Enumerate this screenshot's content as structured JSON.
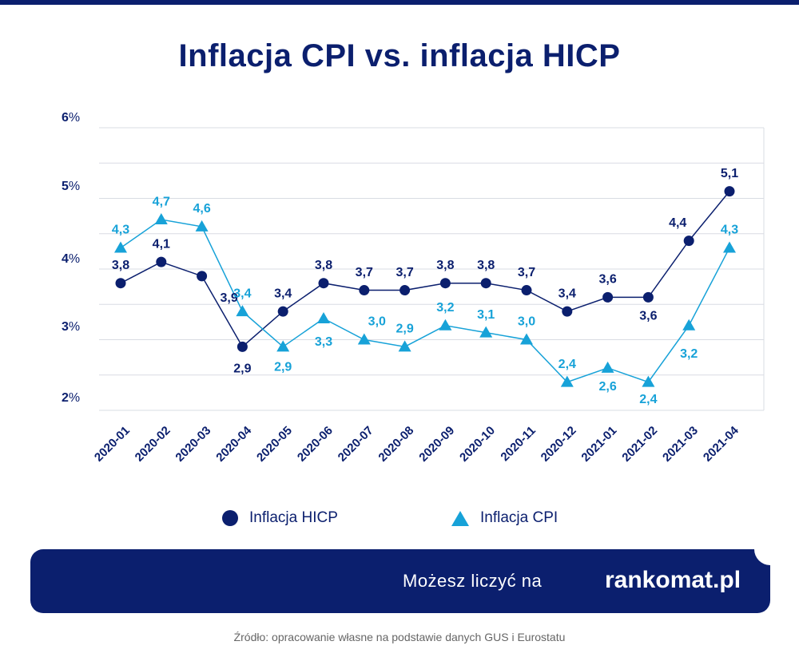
{
  "title": "Inflacja CPI vs. inflacja HICP",
  "colors": {
    "navy": "#0b1f6e",
    "cyan": "#17a2d8",
    "grid": "#d9dce3"
  },
  "chart_data": {
    "type": "line",
    "title": "Inflacja CPI vs. inflacja HICP",
    "xlabel": "",
    "ylabel": "",
    "categories": [
      "2020-01",
      "2020-02",
      "2020-03",
      "2020-04",
      "2020-05",
      "2020-06",
      "2020-07",
      "2020-08",
      "2020-09",
      "2020-10",
      "2020-11",
      "2020-12",
      "2021-01",
      "2021-02",
      "2021-03",
      "2021-04"
    ],
    "ylim": [
      2,
      6
    ],
    "yticks": [
      {
        "value": 6,
        "num": "6",
        "unit": "%"
      },
      {
        "value": 5,
        "num": "5",
        "unit": "%"
      },
      {
        "value": 4,
        "num": "4",
        "unit": "%"
      },
      {
        "value": 3,
        "num": "3",
        "unit": "%"
      },
      {
        "value": 2,
        "num": "2",
        "unit": "%"
      }
    ],
    "grid": true,
    "legend_position": "bottom",
    "series": [
      {
        "name": "Inflacja HICP",
        "marker": "circle",
        "color": "#0b1f6e",
        "values": [
          3.8,
          4.1,
          3.9,
          2.9,
          3.4,
          3.8,
          3.7,
          3.7,
          3.8,
          3.8,
          3.7,
          3.4,
          3.6,
          3.6,
          4.4,
          5.1
        ],
        "labels": [
          "3,8",
          "4,1",
          "3,9",
          "2,9",
          "3,4",
          "3,8",
          "3,7",
          "3,7",
          "3,8",
          "3,8",
          "3,7",
          "3,4",
          "3,6",
          "3,6",
          "4,4",
          "5,1"
        ]
      },
      {
        "name": "Inflacja CPI",
        "marker": "triangle",
        "color": "#17a2d8",
        "values": [
          4.3,
          4.7,
          4.6,
          3.4,
          2.9,
          3.3,
          3.0,
          2.9,
          3.2,
          3.1,
          3.0,
          2.4,
          2.6,
          2.4,
          3.2,
          4.3
        ],
        "labels": [
          "4,3",
          "4,7",
          "4,6",
          "3,4",
          "2,9",
          "3,3",
          "3,0",
          "2,9",
          "3,2",
          "3,1",
          "3,0",
          "2,4",
          "2,6",
          "2,4",
          "3,2",
          "4,3"
        ]
      }
    ]
  },
  "legend": {
    "hicp": "Inflacja HICP",
    "cpi": "Inflacja CPI"
  },
  "banner": {
    "text": "Możesz liczyć na",
    "brand": "rankomat.pl"
  },
  "source": "Źródło: opracowanie własne na podstawie danych GUS i Eurostatu"
}
